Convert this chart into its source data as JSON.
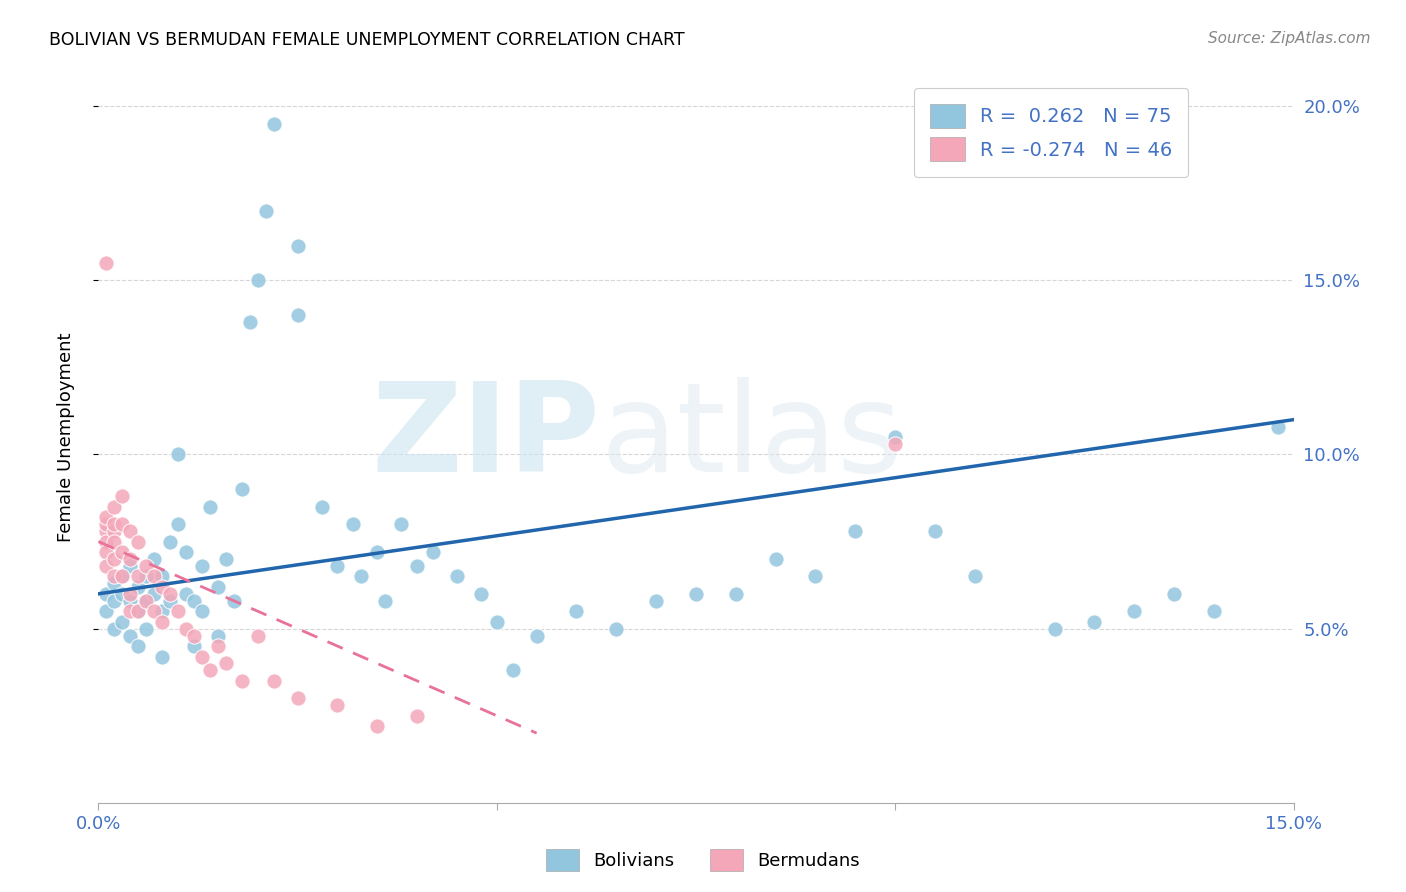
{
  "title": "BOLIVIAN VS BERMUDAN FEMALE UNEMPLOYMENT CORRELATION CHART",
  "source": "Source: ZipAtlas.com",
  "ylabel": "Female Unemployment",
  "watermark": "ZIPatlas",
  "x_min": 0.0,
  "x_max": 0.15,
  "y_min": 0.0,
  "y_max": 0.21,
  "y_ticks": [
    0.05,
    0.1,
    0.15,
    0.2
  ],
  "x_ticks": [
    0.0,
    0.05,
    0.1,
    0.15
  ],
  "bolivian_color": "#92c5de",
  "bermudan_color": "#f4a7b9",
  "bolivian_line_color": "#2166ac",
  "bermudan_line_color": "#e8729a",
  "legend_R_bolivian": "R =  0.262",
  "legend_N_bolivian": "N = 75",
  "legend_R_bermudan": "R = -0.274",
  "legend_N_bermudan": "N = 46",
  "bolivian_R": 0.262,
  "bolivian_N": 75,
  "bermudan_R": -0.274,
  "bermudan_N": 46,
  "bol_line_x0": 0.0,
  "bol_line_x1": 0.15,
  "bol_line_y0": 0.06,
  "bol_line_y1": 0.11,
  "ber_line_x0": 0.0,
  "ber_line_x1": 0.055,
  "ber_line_y0": 0.075,
  "ber_line_y1": 0.02,
  "bolivian_points": [
    [
      0.001,
      0.06
    ],
    [
      0.001,
      0.055
    ],
    [
      0.002,
      0.063
    ],
    [
      0.002,
      0.058
    ],
    [
      0.002,
      0.05
    ],
    [
      0.003,
      0.065
    ],
    [
      0.003,
      0.06
    ],
    [
      0.003,
      0.052
    ],
    [
      0.004,
      0.068
    ],
    [
      0.004,
      0.058
    ],
    [
      0.004,
      0.048
    ],
    [
      0.005,
      0.062
    ],
    [
      0.005,
      0.055
    ],
    [
      0.005,
      0.045
    ],
    [
      0.006,
      0.065
    ],
    [
      0.006,
      0.058
    ],
    [
      0.006,
      0.05
    ],
    [
      0.007,
      0.07
    ],
    [
      0.007,
      0.06
    ],
    [
      0.008,
      0.065
    ],
    [
      0.008,
      0.055
    ],
    [
      0.008,
      0.042
    ],
    [
      0.009,
      0.075
    ],
    [
      0.009,
      0.058
    ],
    [
      0.01,
      0.1
    ],
    [
      0.01,
      0.08
    ],
    [
      0.011,
      0.072
    ],
    [
      0.011,
      0.06
    ],
    [
      0.012,
      0.058
    ],
    [
      0.012,
      0.045
    ],
    [
      0.013,
      0.068
    ],
    [
      0.013,
      0.055
    ],
    [
      0.014,
      0.085
    ],
    [
      0.015,
      0.062
    ],
    [
      0.015,
      0.048
    ],
    [
      0.016,
      0.07
    ],
    [
      0.017,
      0.058
    ],
    [
      0.018,
      0.09
    ],
    [
      0.019,
      0.138
    ],
    [
      0.02,
      0.15
    ],
    [
      0.021,
      0.17
    ],
    [
      0.022,
      0.195
    ],
    [
      0.025,
      0.16
    ],
    [
      0.025,
      0.14
    ],
    [
      0.028,
      0.085
    ],
    [
      0.03,
      0.068
    ],
    [
      0.032,
      0.08
    ],
    [
      0.033,
      0.065
    ],
    [
      0.035,
      0.072
    ],
    [
      0.036,
      0.058
    ],
    [
      0.038,
      0.08
    ],
    [
      0.04,
      0.068
    ],
    [
      0.042,
      0.072
    ],
    [
      0.045,
      0.065
    ],
    [
      0.048,
      0.06
    ],
    [
      0.05,
      0.052
    ],
    [
      0.052,
      0.038
    ],
    [
      0.055,
      0.048
    ],
    [
      0.06,
      0.055
    ],
    [
      0.065,
      0.05
    ],
    [
      0.07,
      0.058
    ],
    [
      0.075,
      0.06
    ],
    [
      0.08,
      0.06
    ],
    [
      0.085,
      0.07
    ],
    [
      0.09,
      0.065
    ],
    [
      0.095,
      0.078
    ],
    [
      0.1,
      0.105
    ],
    [
      0.105,
      0.078
    ],
    [
      0.11,
      0.065
    ],
    [
      0.12,
      0.05
    ],
    [
      0.125,
      0.052
    ],
    [
      0.13,
      0.055
    ],
    [
      0.135,
      0.06
    ],
    [
      0.14,
      0.055
    ],
    [
      0.148,
      0.108
    ]
  ],
  "bermudan_points": [
    [
      0.001,
      0.155
    ],
    [
      0.001,
      0.078
    ],
    [
      0.001,
      0.075
    ],
    [
      0.001,
      0.08
    ],
    [
      0.001,
      0.072
    ],
    [
      0.001,
      0.068
    ],
    [
      0.001,
      0.082
    ],
    [
      0.002,
      0.078
    ],
    [
      0.002,
      0.07
    ],
    [
      0.002,
      0.085
    ],
    [
      0.002,
      0.08
    ],
    [
      0.002,
      0.065
    ],
    [
      0.002,
      0.075
    ],
    [
      0.003,
      0.088
    ],
    [
      0.003,
      0.08
    ],
    [
      0.003,
      0.072
    ],
    [
      0.003,
      0.065
    ],
    [
      0.004,
      0.078
    ],
    [
      0.004,
      0.07
    ],
    [
      0.004,
      0.06
    ],
    [
      0.004,
      0.055
    ],
    [
      0.005,
      0.075
    ],
    [
      0.005,
      0.065
    ],
    [
      0.005,
      0.055
    ],
    [
      0.006,
      0.068
    ],
    [
      0.006,
      0.058
    ],
    [
      0.007,
      0.065
    ],
    [
      0.007,
      0.055
    ],
    [
      0.008,
      0.062
    ],
    [
      0.008,
      0.052
    ],
    [
      0.009,
      0.06
    ],
    [
      0.01,
      0.055
    ],
    [
      0.011,
      0.05
    ],
    [
      0.012,
      0.048
    ],
    [
      0.013,
      0.042
    ],
    [
      0.014,
      0.038
    ],
    [
      0.015,
      0.045
    ],
    [
      0.016,
      0.04
    ],
    [
      0.018,
      0.035
    ],
    [
      0.02,
      0.048
    ],
    [
      0.022,
      0.035
    ],
    [
      0.025,
      0.03
    ],
    [
      0.03,
      0.028
    ],
    [
      0.035,
      0.022
    ],
    [
      0.04,
      0.025
    ],
    [
      0.1,
      0.103
    ]
  ]
}
